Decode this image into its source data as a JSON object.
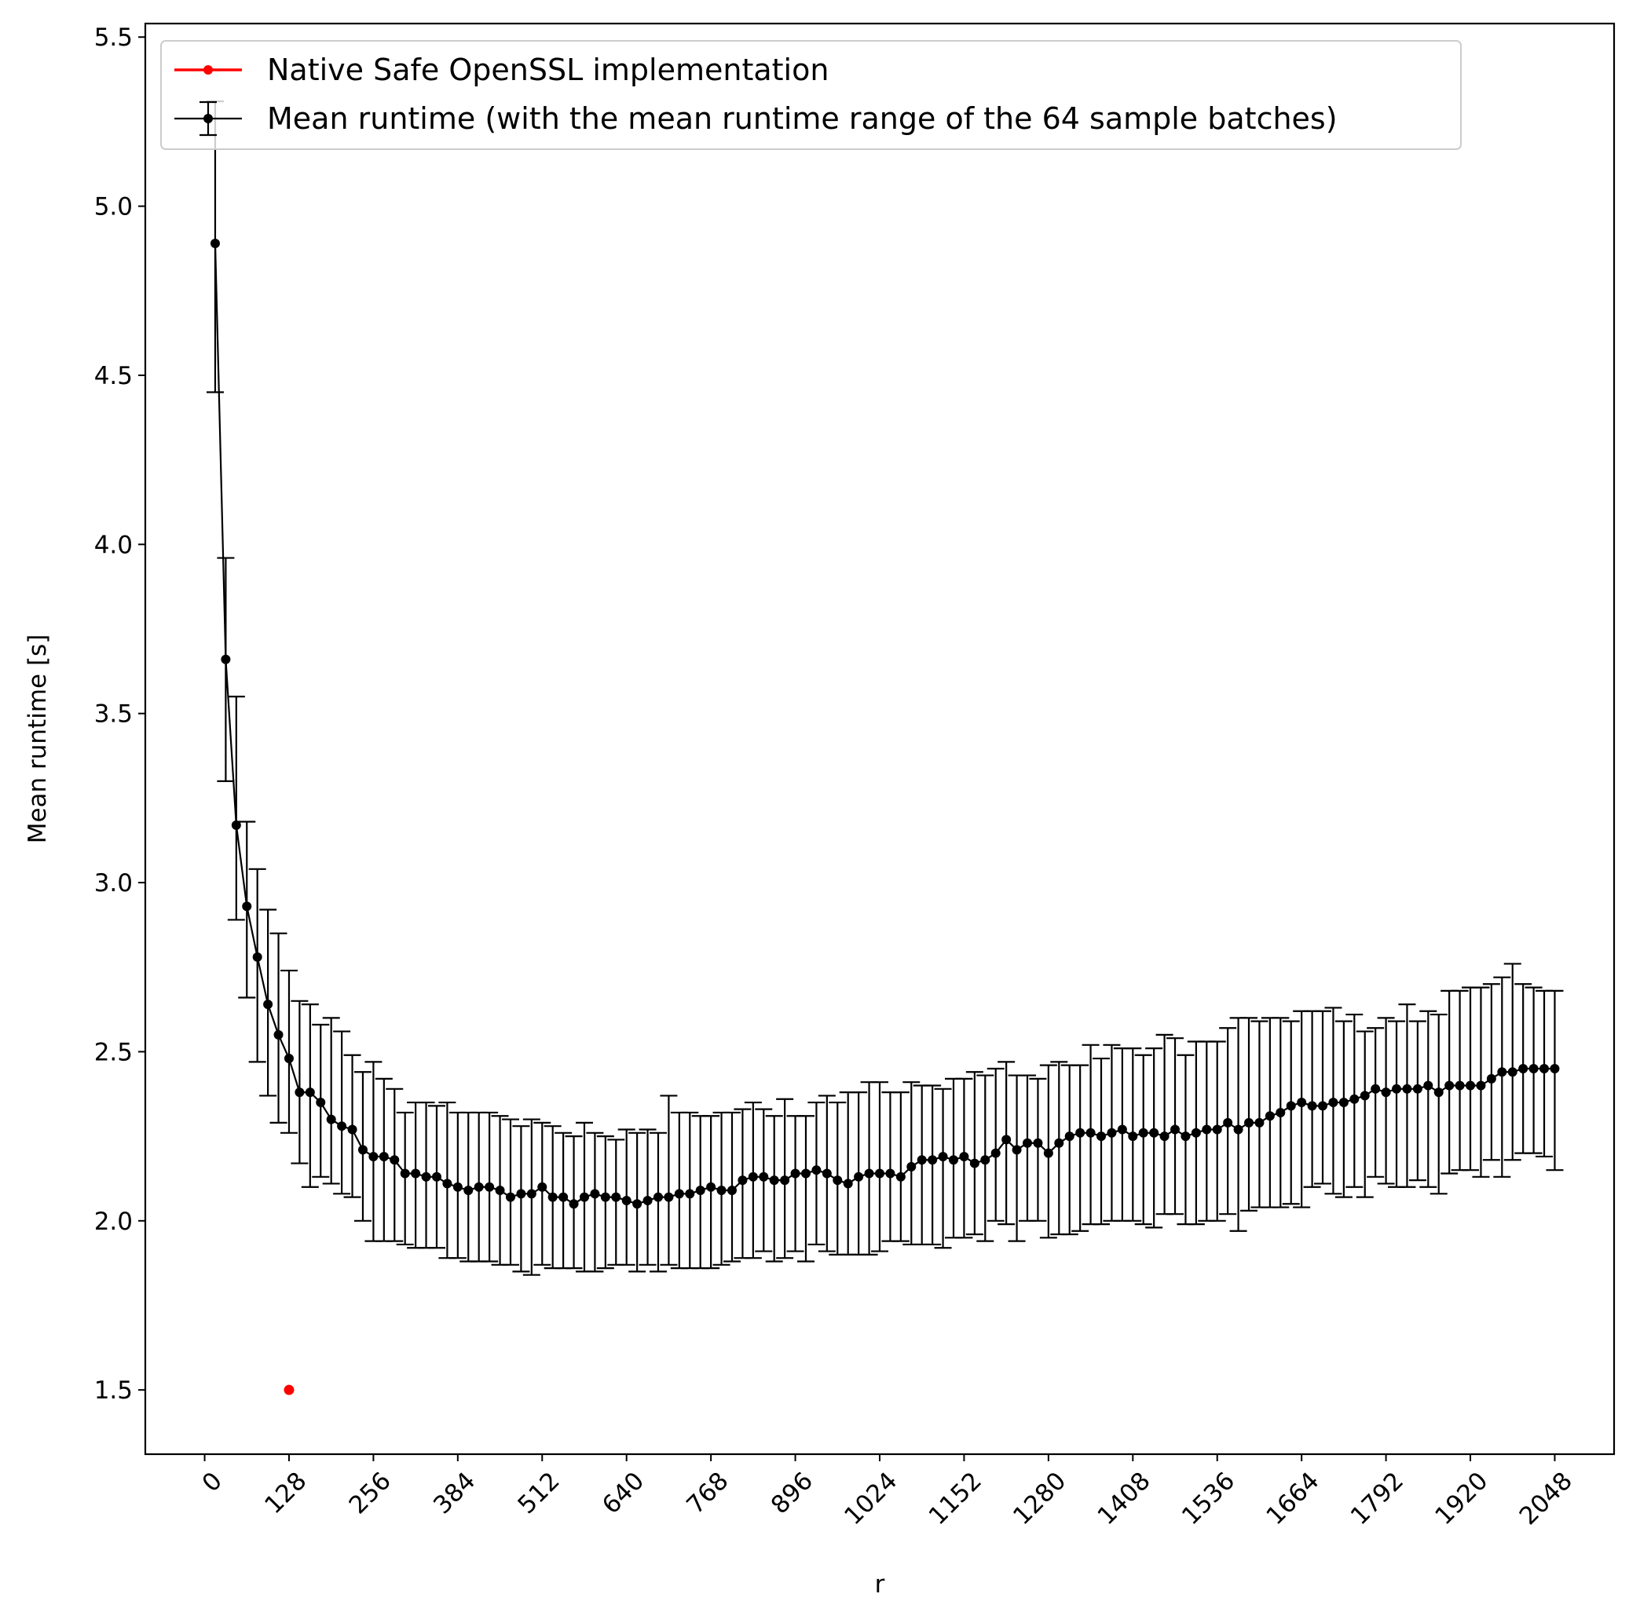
{
  "chart_data": {
    "type": "scatter",
    "xlabel": "r",
    "ylabel": "Mean runtime [s]",
    "xticks": [
      0,
      128,
      256,
      384,
      512,
      640,
      768,
      896,
      1024,
      1152,
      1280,
      1408,
      1536,
      1664,
      1792,
      1920,
      2048
    ],
    "yticks": [
      "1.5",
      "2.0",
      "2.5",
      "3.0",
      "3.5",
      "4.0",
      "4.5",
      "5.0",
      "5.5"
    ],
    "xlim": [
      -90,
      2138
    ],
    "ylim": [
      1.31,
      5.54
    ],
    "grid": false,
    "legend_position": "top-left",
    "series": [
      {
        "name": "Native Safe OpenSSL implementation",
        "color": "#ff0000",
        "marker": "dot",
        "x": [
          128
        ],
        "y": [
          1.5
        ]
      },
      {
        "name": "Mean runtime (with the mean runtime range of the 64 sample batches)",
        "color": "#000000",
        "marker": "dot-line-errorbar",
        "x": [
          16,
          32,
          48,
          64,
          80,
          96,
          112,
          128,
          144,
          160,
          176,
          192,
          208,
          224,
          240,
          256,
          272,
          288,
          304,
          320,
          336,
          352,
          368,
          384,
          400,
          416,
          432,
          448,
          464,
          480,
          496,
          512,
          528,
          544,
          560,
          576,
          592,
          608,
          624,
          640,
          656,
          672,
          688,
          704,
          720,
          736,
          752,
          768,
          784,
          800,
          816,
          832,
          848,
          864,
          880,
          896,
          912,
          928,
          944,
          960,
          976,
          992,
          1008,
          1024,
          1040,
          1056,
          1072,
          1088,
          1104,
          1120,
          1136,
          1152,
          1168,
          1184,
          1200,
          1216,
          1232,
          1248,
          1264,
          1280,
          1296,
          1312,
          1328,
          1344,
          1360,
          1376,
          1392,
          1408,
          1424,
          1440,
          1456,
          1472,
          1488,
          1504,
          1520,
          1536,
          1552,
          1568,
          1584,
          1600,
          1616,
          1632,
          1648,
          1664,
          1680,
          1696,
          1712,
          1728,
          1744,
          1760,
          1776,
          1792,
          1808,
          1824,
          1840,
          1856,
          1872,
          1888,
          1904,
          1920,
          1936,
          1952,
          1968,
          1984,
          2000,
          2016,
          2032,
          2048
        ],
        "y": [
          4.89,
          3.66,
          3.17,
          2.93,
          2.78,
          2.64,
          2.55,
          2.48,
          2.38,
          2.38,
          2.35,
          2.3,
          2.28,
          2.27,
          2.21,
          2.19,
          2.19,
          2.18,
          2.14,
          2.14,
          2.13,
          2.13,
          2.11,
          2.1,
          2.09,
          2.1,
          2.1,
          2.09,
          2.07,
          2.08,
          2.08,
          2.1,
          2.07,
          2.07,
          2.05,
          2.07,
          2.08,
          2.07,
          2.07,
          2.06,
          2.05,
          2.06,
          2.07,
          2.07,
          2.08,
          2.08,
          2.09,
          2.1,
          2.09,
          2.09,
          2.12,
          2.13,
          2.13,
          2.12,
          2.12,
          2.14,
          2.14,
          2.15,
          2.14,
          2.12,
          2.11,
          2.13,
          2.14,
          2.14,
          2.14,
          2.13,
          2.16,
          2.18,
          2.18,
          2.19,
          2.18,
          2.19,
          2.17,
          2.18,
          2.2,
          2.24,
          2.21,
          2.23,
          2.23,
          2.2,
          2.23,
          2.25,
          2.26,
          2.26,
          2.25,
          2.26,
          2.27,
          2.25,
          2.26,
          2.26,
          2.25,
          2.27,
          2.25,
          2.26,
          2.27,
          2.27,
          2.29,
          2.27,
          2.29,
          2.29,
          2.31,
          2.32,
          2.34,
          2.35,
          2.34,
          2.34,
          2.35,
          2.35,
          2.36,
          2.37,
          2.39,
          2.38,
          2.39,
          2.39,
          2.39,
          2.4,
          2.38,
          2.4,
          2.4,
          2.4,
          2.4,
          2.42,
          2.44,
          2.44,
          2.45,
          2.45,
          2.45,
          2.45
        ],
        "yerr_low": [
          4.45,
          3.3,
          2.89,
          2.66,
          2.47,
          2.37,
          2.29,
          2.26,
          2.17,
          2.1,
          2.13,
          2.11,
          2.08,
          2.07,
          2.0,
          1.94,
          1.94,
          1.94,
          1.93,
          1.92,
          1.92,
          1.92,
          1.89,
          1.89,
          1.88,
          1.88,
          1.88,
          1.87,
          1.87,
          1.85,
          1.84,
          1.87,
          1.86,
          1.86,
          1.86,
          1.85,
          1.85,
          1.86,
          1.87,
          1.87,
          1.85,
          1.87,
          1.85,
          1.87,
          1.86,
          1.86,
          1.86,
          1.86,
          1.87,
          1.88,
          1.89,
          1.89,
          1.91,
          1.88,
          1.89,
          1.91,
          1.88,
          1.93,
          1.91,
          1.9,
          1.9,
          1.9,
          1.9,
          1.91,
          1.94,
          1.94,
          1.93,
          1.93,
          1.93,
          1.92,
          1.95,
          1.95,
          1.96,
          1.94,
          2.0,
          1.99,
          1.94,
          2.0,
          2.0,
          1.95,
          1.96,
          1.96,
          1.97,
          1.99,
          1.99,
          2.0,
          2.0,
          2.0,
          1.99,
          1.98,
          2.02,
          2.02,
          1.99,
          1.99,
          2.0,
          2.0,
          2.02,
          1.97,
          2.03,
          2.04,
          2.04,
          2.04,
          2.05,
          2.04,
          2.1,
          2.11,
          2.08,
          2.07,
          2.1,
          2.07,
          2.13,
          2.11,
          2.1,
          2.1,
          2.12,
          2.1,
          2.08,
          2.14,
          2.15,
          2.15,
          2.13,
          2.18,
          2.13,
          2.18,
          2.2,
          2.2,
          2.19,
          2.15
        ],
        "yerr_high": [
          5.31,
          3.96,
          3.55,
          3.18,
          3.04,
          2.92,
          2.85,
          2.74,
          2.65,
          2.64,
          2.58,
          2.6,
          2.56,
          2.49,
          2.44,
          2.47,
          2.42,
          2.39,
          2.32,
          2.35,
          2.35,
          2.34,
          2.35,
          2.32,
          2.32,
          2.32,
          2.32,
          2.31,
          2.3,
          2.28,
          2.3,
          2.29,
          2.28,
          2.26,
          2.25,
          2.29,
          2.26,
          2.25,
          2.24,
          2.27,
          2.26,
          2.27,
          2.26,
          2.37,
          2.32,
          2.32,
          2.31,
          2.31,
          2.32,
          2.32,
          2.33,
          2.35,
          2.33,
          2.31,
          2.36,
          2.31,
          2.31,
          2.35,
          2.37,
          2.35,
          2.38,
          2.38,
          2.41,
          2.41,
          2.38,
          2.38,
          2.41,
          2.4,
          2.4,
          2.39,
          2.42,
          2.42,
          2.44,
          2.43,
          2.45,
          2.47,
          2.43,
          2.43,
          2.42,
          2.46,
          2.47,
          2.46,
          2.46,
          2.52,
          2.48,
          2.52,
          2.51,
          2.51,
          2.49,
          2.51,
          2.55,
          2.54,
          2.49,
          2.53,
          2.53,
          2.53,
          2.57,
          2.6,
          2.6,
          2.59,
          2.6,
          2.6,
          2.59,
          2.62,
          2.62,
          2.62,
          2.63,
          2.59,
          2.61,
          2.56,
          2.57,
          2.6,
          2.59,
          2.64,
          2.59,
          2.62,
          2.61,
          2.68,
          2.68,
          2.69,
          2.69,
          2.7,
          2.72,
          2.76,
          2.7,
          2.69,
          2.68,
          2.68
        ]
      }
    ]
  }
}
